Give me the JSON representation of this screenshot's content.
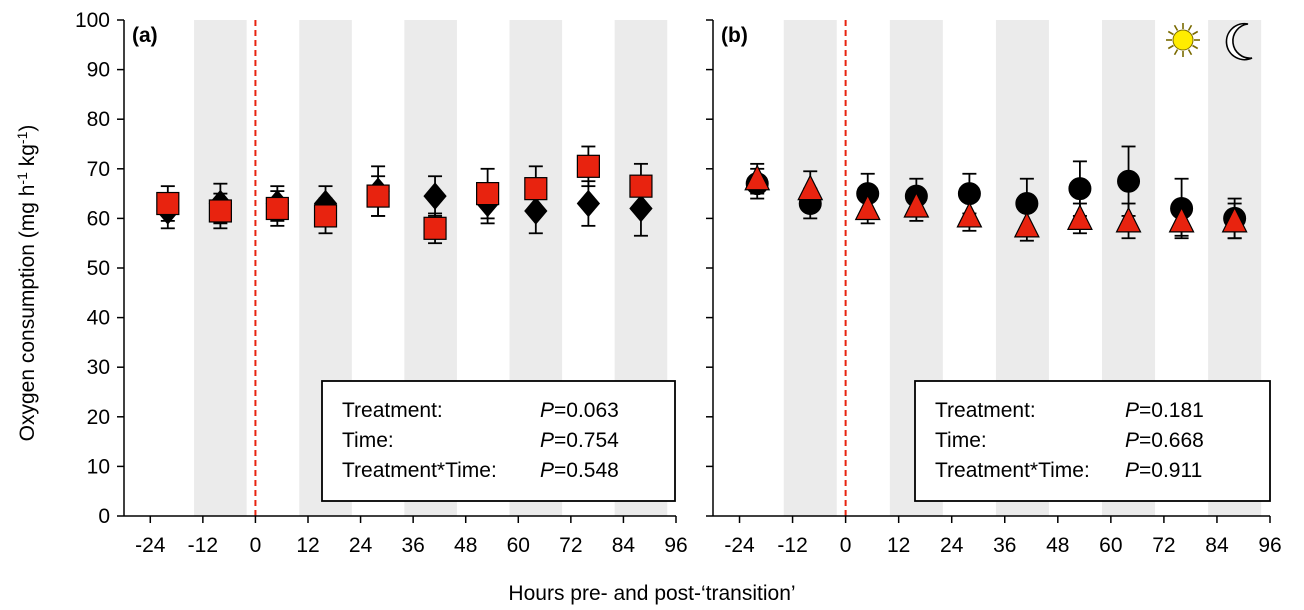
{
  "figure": {
    "ylabel_main": "Oxygen consumption (mg h",
    "ylabel_sup1": "-1",
    "ylabel_mid": " kg",
    "ylabel_sup2": "-1",
    "ylabel_end": ")",
    "xlabel": "Hours pre- and post-‘transition’"
  },
  "chart_data": [
    {
      "type": "scatter",
      "panel_label": "(a)",
      "xlim": [
        -30,
        96
      ],
      "ylim": [
        0,
        100
      ],
      "xticks": [
        "-24",
        "-12",
        "0",
        "12",
        "24",
        "36",
        "48",
        "60",
        "72",
        "84",
        "96"
      ],
      "yticks": [
        "0",
        "10",
        "20",
        "30",
        "40",
        "50",
        "60",
        "70",
        "80",
        "90",
        "100"
      ],
      "shaded_bands": [
        [
          -14,
          -2
        ],
        [
          10,
          22
        ],
        [
          34,
          46
        ],
        [
          58,
          70
        ],
        [
          82,
          94
        ]
      ],
      "transition_x": 0,
      "series": [
        {
          "marker": "diamond",
          "color": "#000000",
          "x": [
            -20,
            -8,
            5,
            16,
            28,
            41,
            53,
            64,
            76,
            88
          ],
          "y": [
            61.5,
            63,
            63,
            63,
            65.5,
            64.5,
            63,
            61.5,
            63,
            62
          ],
          "err": [
            3.5,
            4,
            3.5,
            3.5,
            5,
            4,
            4,
            4.5,
            4.5,
            5.5
          ]
        },
        {
          "marker": "square",
          "color": "#e8230f",
          "x": [
            -20,
            -8,
            5,
            16,
            28,
            41,
            53,
            64,
            76,
            88
          ],
          "y": [
            63,
            61.5,
            62,
            60.5,
            64.5,
            58,
            65,
            66,
            70.5,
            66.5
          ],
          "err": [
            3.5,
            3.5,
            3.5,
            3.5,
            4,
            3,
            5,
            4.5,
            4,
            4.5
          ]
        }
      ],
      "stats": [
        {
          "label": "Treatment:",
          "p_prefix": "P",
          "p_value": "=0.063"
        },
        {
          "label": "Time:",
          "p_prefix": "P",
          "p_value": "=0.754"
        },
        {
          "label": "Treatment*Time:",
          "p_prefix": "P",
          "p_value": "=0.548"
        }
      ]
    },
    {
      "type": "scatter",
      "panel_label": "(b)",
      "xlim": [
        -30,
        96
      ],
      "ylim": [
        0,
        100
      ],
      "xticks": [
        "-24",
        "-12",
        "0",
        "12",
        "24",
        "36",
        "48",
        "60",
        "72",
        "84",
        "96"
      ],
      "yticks": [
        "0",
        "10",
        "20",
        "30",
        "40",
        "50",
        "60",
        "70",
        "80",
        "90",
        "100"
      ],
      "shaded_bands": [
        [
          -14,
          -2
        ],
        [
          10,
          22
        ],
        [
          34,
          46
        ],
        [
          58,
          70
        ],
        [
          82,
          94
        ]
      ],
      "transition_x": 0,
      "icons": [
        "sun-icon",
        "moon-icon"
      ],
      "series": [
        {
          "marker": "circle",
          "color": "#000000",
          "x": [
            -20,
            -8,
            5,
            16,
            28,
            41,
            53,
            64,
            76,
            88
          ],
          "y": [
            67,
            63,
            65,
            64.5,
            65,
            63,
            66,
            67.5,
            62,
            60
          ],
          "err": [
            3,
            3,
            4,
            3.5,
            4,
            5,
            5.5,
            7,
            6,
            4
          ]
        },
        {
          "marker": "triangle",
          "color": "#e8230f",
          "x": [
            -20,
            -8,
            5,
            16,
            28,
            41,
            53,
            64,
            76,
            88
          ],
          "y": [
            68,
            66,
            62,
            62.5,
            60.5,
            58.5,
            60,
            59.5,
            59.5,
            59.5
          ],
          "err": [
            3,
            3.5,
            3,
            3,
            3,
            3,
            3,
            3.5,
            3,
            3.5
          ]
        }
      ],
      "stats": [
        {
          "label": "Treatment:",
          "p_prefix": "P",
          "p_value": "=0.181"
        },
        {
          "label": "Time:",
          "p_prefix": "P",
          "p_value": "=0.668"
        },
        {
          "label": "Treatment*Time:",
          "p_prefix": "P",
          "p_value": "=0.911"
        }
      ]
    }
  ]
}
